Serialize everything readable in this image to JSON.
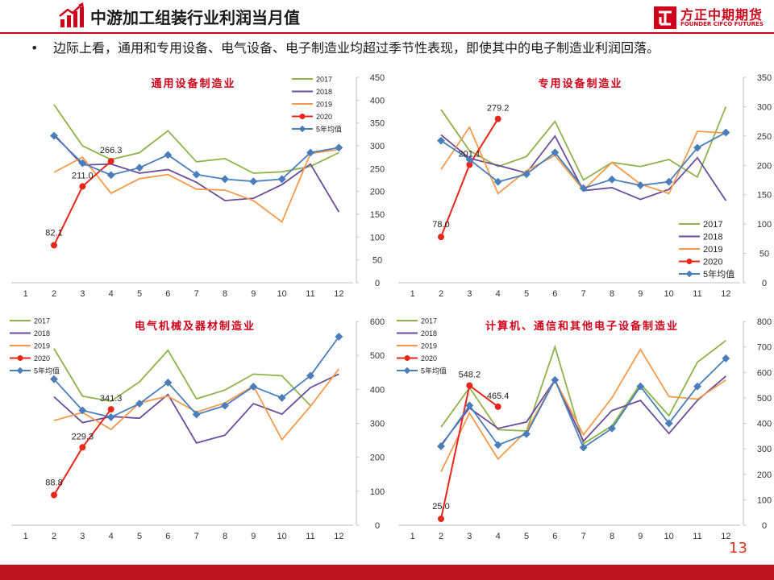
{
  "header": {
    "title": "中游加工组装行业利润当月值",
    "brand_cn": "方正中期期货",
    "brand_en": "FOUNDER CIFCO FUTURES"
  },
  "bullet": {
    "symbol": "•",
    "text": "边际上看，通用和专用设备、电气设备、电子制造业均超过季节性表现，即使其中的电子制造业利润回落。"
  },
  "page_number": "13",
  "colors": {
    "accent": "#d0021b",
    "s2017": "#8db34a",
    "s2018": "#6b4c9a",
    "s2019": "#f39a4c",
    "s2020": "#e8271b",
    "avg": "#4a7ebb"
  },
  "chart_data": [
    {
      "type": "line",
      "title": "通用设备制造业",
      "categories": [
        "1",
        "2",
        "3",
        "4",
        "5",
        "6",
        "7",
        "8",
        "9",
        "10",
        "11",
        "12"
      ],
      "ylim": [
        0,
        450
      ],
      "yticks": [
        "0",
        "50",
        "100",
        "150",
        "200",
        "250",
        "300",
        "350",
        "400",
        "450"
      ],
      "legend": "top-right",
      "series": [
        {
          "name": "2017",
          "values": [
            null,
            390,
            300,
            270,
            285,
            333,
            265,
            272,
            240,
            243,
            255,
            285
          ]
        },
        {
          "name": "2018",
          "values": [
            null,
            325,
            258,
            260,
            240,
            248,
            220,
            180,
            185,
            215,
            260,
            155
          ]
        },
        {
          "name": "2019",
          "values": [
            null,
            242,
            275,
            196,
            228,
            237,
            205,
            203,
            180,
            133,
            283,
            292
          ]
        },
        {
          "name": "2020",
          "values": [
            null,
            82.1,
            211.0,
            266.3,
            null,
            null,
            null,
            null,
            null,
            null,
            null,
            null
          ],
          "labels": [
            "82.1",
            "211.0",
            "266.3"
          ]
        },
        {
          "name": "5年均值",
          "values": [
            null,
            322,
            262,
            236,
            252,
            280,
            237,
            227,
            222,
            227,
            285,
            296
          ]
        }
      ]
    },
    {
      "type": "line",
      "title": "专用设备制造业",
      "categories": [
        "1",
        "2",
        "3",
        "4",
        "5",
        "6",
        "7",
        "8",
        "9",
        "10",
        "11",
        "12"
      ],
      "ylim": [
        0,
        350
      ],
      "yticks": [
        "0",
        "50",
        "100",
        "150",
        "200",
        "250",
        "300",
        "350"
      ],
      "legend": "bottom-right",
      "series": [
        {
          "name": "2017",
          "values": [
            null,
            295,
            225,
            198,
            215,
            275,
            175,
            205,
            198,
            210,
            180,
            300
          ]
        },
        {
          "name": "2018",
          "values": [
            null,
            252,
            212,
            200,
            187,
            250,
            157,
            162,
            142,
            159,
            213,
            140
          ]
        },
        {
          "name": "2019",
          "values": [
            null,
            193,
            265,
            152,
            191,
            217,
            158,
            205,
            168,
            152,
            258,
            255
          ]
        },
        {
          "name": "2020",
          "values": [
            null,
            78.0,
            201.1,
            279.2,
            null,
            null,
            null,
            null,
            null,
            null,
            null,
            null
          ],
          "labels": [
            "78.0",
            "201.1",
            "279.2"
          ]
        },
        {
          "name": "5年均值",
          "values": [
            null,
            242,
            210,
            172,
            185,
            222,
            161,
            176,
            166,
            172,
            230,
            256
          ]
        }
      ]
    },
    {
      "type": "line",
      "title": "电气机械及器材制造业",
      "categories": [
        "1",
        "2",
        "3",
        "4",
        "5",
        "6",
        "7",
        "8",
        "9",
        "10",
        "11",
        "12"
      ],
      "ylim": [
        0,
        600
      ],
      "yticks": [
        "0",
        "100",
        "200",
        "300",
        "400",
        "500",
        "600"
      ],
      "legend": "top-left",
      "series": [
        {
          "name": "2017",
          "values": [
            null,
            520,
            380,
            365,
            422,
            515,
            372,
            398,
            445,
            440,
            352,
            null
          ]
        },
        {
          "name": "2018",
          "values": [
            null,
            378,
            302,
            320,
            315,
            385,
            242,
            265,
            358,
            327,
            405,
            445
          ]
        },
        {
          "name": "2019",
          "values": [
            null,
            308,
            332,
            282,
            360,
            380,
            333,
            360,
            410,
            252,
            350,
            460
          ]
        },
        {
          "name": "2020",
          "values": [
            null,
            88.8,
            229.3,
            341.3,
            null,
            null,
            null,
            null,
            null,
            null,
            null,
            null
          ],
          "labels": [
            "88.8",
            "229.3",
            "341.3"
          ]
        },
        {
          "name": "5年均值",
          "values": [
            null,
            430,
            338,
            318,
            358,
            420,
            326,
            352,
            408,
            375,
            440,
            555
          ]
        }
      ]
    },
    {
      "type": "line",
      "title": "计算机、通信和其他电子设备制造业",
      "categories": [
        "1",
        "2",
        "3",
        "4",
        "5",
        "6",
        "7",
        "8",
        "9",
        "10",
        "11",
        "12"
      ],
      "ylim": [
        0,
        800
      ],
      "yticks": [
        "0",
        "100",
        "200",
        "300",
        "400",
        "500",
        "600",
        "700",
        "800"
      ],
      "legend": "top-left",
      "series": [
        {
          "name": "2017",
          "values": [
            null,
            385,
            540,
            375,
            370,
            700,
            320,
            390,
            555,
            430,
            640,
            725
          ]
        },
        {
          "name": "2018",
          "values": [
            null,
            315,
            460,
            380,
            405,
            570,
            330,
            450,
            490,
            360,
            490,
            585
          ]
        },
        {
          "name": "2019",
          "values": [
            null,
            210,
            440,
            260,
            370,
            570,
            355,
            500,
            690,
            505,
            495,
            570
          ]
        },
        {
          "name": "2020",
          "values": [
            null,
            25.0,
            548.2,
            465.4,
            null,
            null,
            null,
            null,
            null,
            null,
            null,
            null
          ],
          "labels": [
            "25.0",
            "548.2",
            "465.4"
          ]
        },
        {
          "name": "5年均值",
          "values": [
            null,
            310,
            470,
            315,
            358,
            570,
            305,
            380,
            545,
            400,
            545,
            655
          ]
        }
      ]
    }
  ]
}
